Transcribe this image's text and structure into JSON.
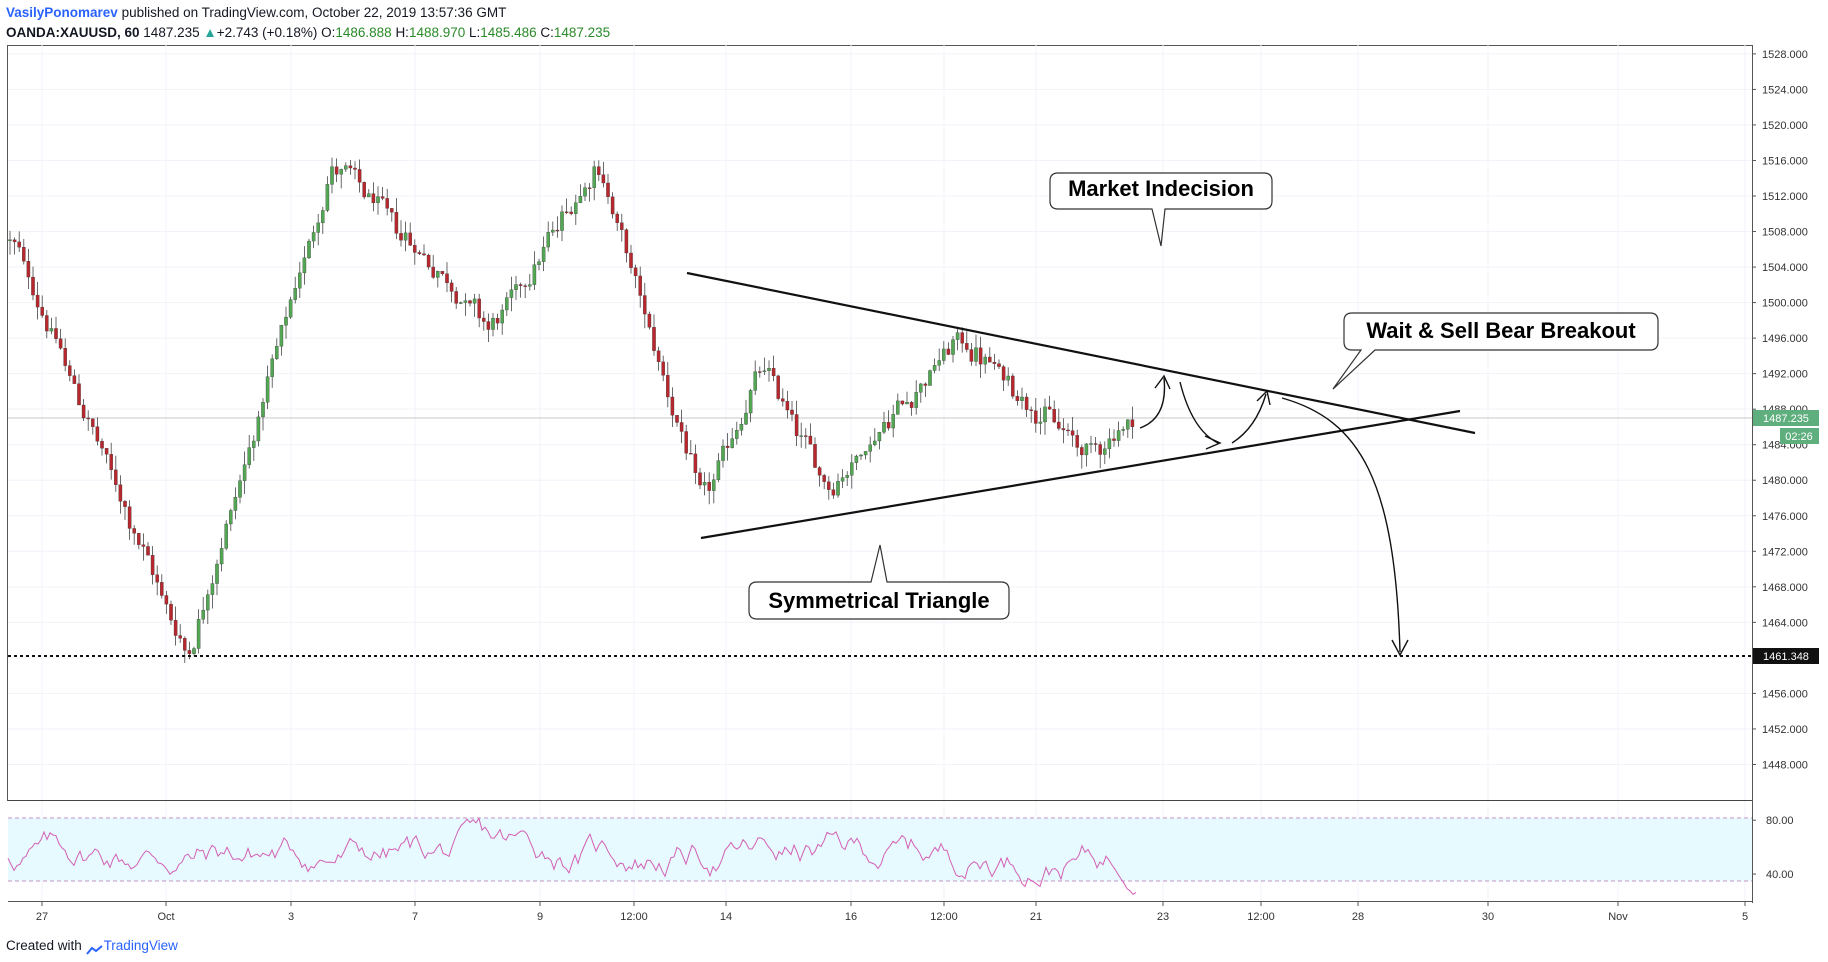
{
  "header": {
    "author": "VasilyPonomarev",
    "published": "published on TradingView.com, October 22, 2019 13:57:36 GMT",
    "symbol": "OANDA:XAUUSD, 60",
    "last": "1487.235",
    "arrow": "▲",
    "change": "+2.743 (+0.18%)",
    "open_label": "O:",
    "open": "1486.888",
    "high_label": "H:",
    "high": "1488.970",
    "low_label": "L:",
    "low": "1485.486",
    "close_label": "C:",
    "close": "1487.235"
  },
  "footer": {
    "created": "Created with",
    "brand": "TradingView"
  },
  "annotations": {
    "market_indecision": "Market Indecision",
    "wait_sell": "Wait & Sell Bear Breakout",
    "symmetrical_triangle": "Symmetrical Triangle"
  },
  "price_tags": {
    "current": "1487.235",
    "countdown": "02:26",
    "target": "1461.348"
  },
  "colors": {
    "up": "#53a653",
    "down": "#b7282e",
    "rsi_line": "#d45fb5",
    "rsi_band": "#e6faff",
    "tag_green": "#5fae7e"
  },
  "chart_data": {
    "type": "candlestick",
    "symbol": "OANDA:XAUUSD",
    "interval": "60",
    "ylim": [
      1444,
      1529
    ],
    "y_ticks": [
      "1528.000",
      "1524.000",
      "1520.000",
      "1516.000",
      "1512.000",
      "1508.000",
      "1504.000",
      "1500.000",
      "1496.000",
      "1492.000",
      "1488.000",
      "1484.000",
      "1480.000",
      "1476.000",
      "1472.000",
      "1468.000",
      "1464.000",
      "1460.000",
      "1456.000",
      "1452.000",
      "1448.000"
    ],
    "x_ticks": [
      "27",
      "Oct",
      "3",
      "7",
      "9",
      "12:00",
      "14",
      "16",
      "12:00",
      "21",
      "23",
      "12:00",
      "28",
      "30",
      "Nov",
      "5"
    ],
    "key_points": [
      {
        "x": "Sep 26",
        "y": 1507
      },
      {
        "x": "Sep 30",
        "y": 1476
      },
      {
        "x": "Oct 1",
        "y": 1460
      },
      {
        "x": "Oct 3",
        "y": 1516
      },
      {
        "x": "Oct 7",
        "y": 1497
      },
      {
        "x": "Oct 10",
        "y": 1516
      },
      {
        "x": "Oct 14",
        "y": 1477
      },
      {
        "x": "Oct 15",
        "y": 1493
      },
      {
        "x": "Oct 16",
        "y": 1479
      },
      {
        "x": "Oct 18",
        "y": 1496
      },
      {
        "x": "Oct 21",
        "y": 1483
      },
      {
        "x": "Oct 22",
        "y": 1487.235
      }
    ],
    "support_level": 1461.348,
    "rsi": {
      "ticks": [
        "80.00",
        "40.00"
      ],
      "upper": 80,
      "lower": 40,
      "ylim": [
        20,
        95
      ]
    }
  }
}
